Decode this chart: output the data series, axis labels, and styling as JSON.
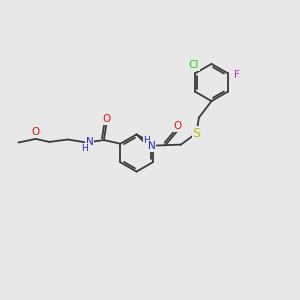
{
  "bg_color": "#e8e8e8",
  "bond_color": "#3a3a3a",
  "figsize": [
    3.0,
    3.0
  ],
  "dpi": 100,
  "colors": {
    "N": "#2222dd",
    "O": "#ee1111",
    "S": "#bbbb00",
    "Cl": "#22cc22",
    "F": "#cc22cc",
    "C": "#3a3a3a"
  },
  "bond_lw": 1.3,
  "font_size": 7.5
}
